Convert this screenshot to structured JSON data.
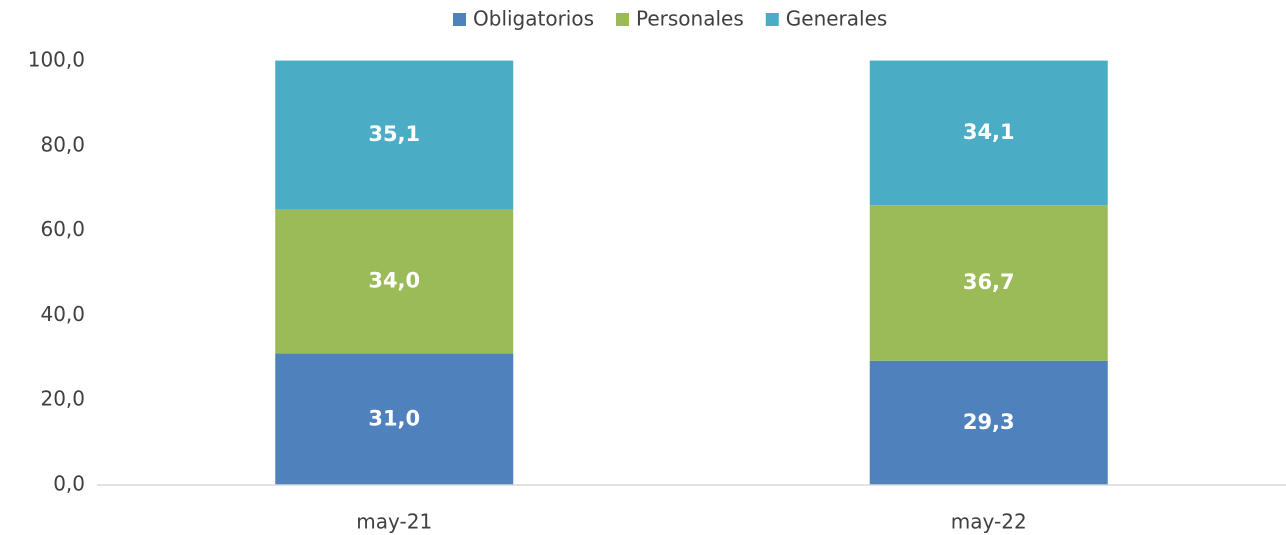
{
  "chart_data": {
    "type": "bar",
    "stacked": true,
    "categories": [
      "may-21",
      "may-22"
    ],
    "series": [
      {
        "name": "Obligatorios",
        "color": "#4f81bd",
        "values": [
          31.0,
          29.3
        ],
        "value_labels": [
          "31,0",
          "29,3"
        ]
      },
      {
        "name": "Personales",
        "color": "#9bbb59",
        "values": [
          34.0,
          36.7
        ],
        "value_labels": [
          "34,0",
          "36,7"
        ]
      },
      {
        "name": "Generales",
        "color": "#4bacc6",
        "values": [
          35.1,
          34.1
        ],
        "value_labels": [
          "35,1",
          "34,1"
        ]
      }
    ],
    "ylim": [
      0,
      100
    ],
    "yticks": [
      {
        "value": 0,
        "label": "0,0"
      },
      {
        "value": 20,
        "label": "20,0"
      },
      {
        "value": 40,
        "label": "40,0"
      },
      {
        "value": 60,
        "label": "60,0"
      },
      {
        "value": 80,
        "label": "80,0"
      },
      {
        "value": 100,
        "label": "100,0"
      }
    ],
    "grid": false,
    "legend": "top"
  }
}
